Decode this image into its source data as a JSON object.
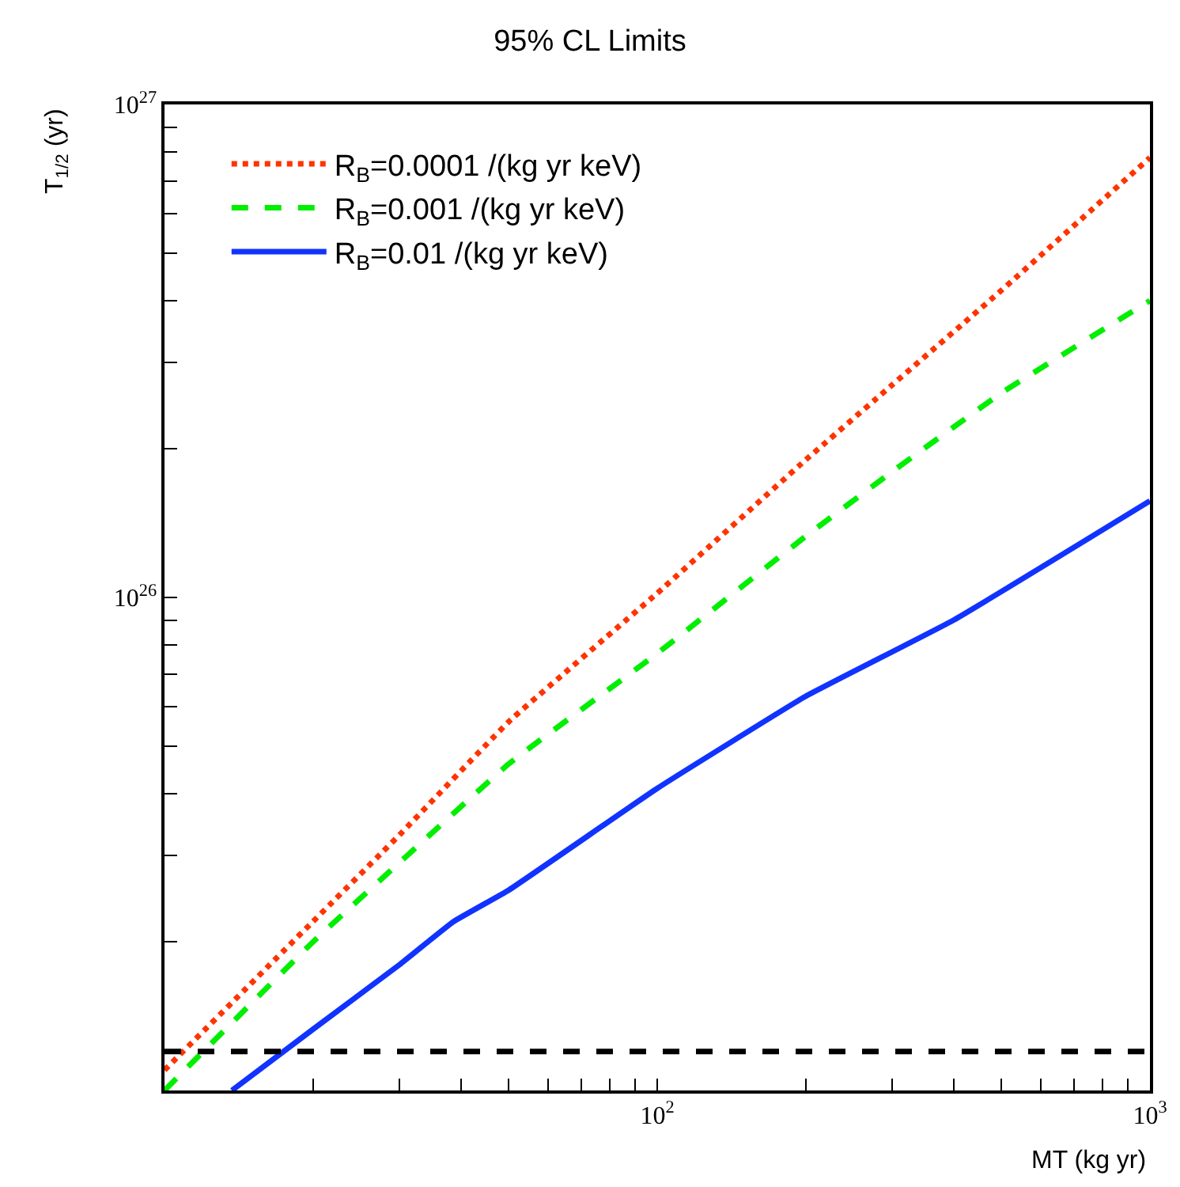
{
  "chart_data": {
    "type": "line",
    "title": "95% CL Limits",
    "xlabel": "MT (kg yr)",
    "ylabel": "T$_{1/2}$ (yr)",
    "log": "xy",
    "legend": "top left",
    "marker": "none",
    "xlim": [
      10,
      1000
    ],
    "ylim": [
      1e+25,
      1e+27
    ],
    "xticks": [
      {
        "value": 20,
        "label": null
      },
      {
        "value": 30,
        "label": null
      },
      {
        "value": 40,
        "label": null
      },
      {
        "value": 50,
        "label": null
      },
      {
        "value": 60,
        "label": null
      },
      {
        "value": 70,
        "label": null
      },
      {
        "value": 80,
        "label": null
      },
      {
        "value": 90,
        "label": null
      },
      {
        "value": 100,
        "label": "10$^{2}$"
      },
      {
        "value": 200,
        "label": null
      },
      {
        "value": 300,
        "label": null
      },
      {
        "value": 400,
        "label": null
      },
      {
        "value": 500,
        "label": null
      },
      {
        "value": 600,
        "label": null
      },
      {
        "value": 700,
        "label": null
      },
      {
        "value": 800,
        "label": null
      },
      {
        "value": 900,
        "label": null
      },
      {
        "value": 1000,
        "label": "10$^{3}$"
      }
    ],
    "yticks": [
      {
        "value": 2e+25,
        "label": null
      },
      {
        "value": 3e+25,
        "label": null
      },
      {
        "value": 4e+25,
        "label": null
      },
      {
        "value": 5e+25,
        "label": null
      },
      {
        "value": 6e+25,
        "label": null
      },
      {
        "value": 7e+25,
        "label": null
      },
      {
        "value": 8e+25,
        "label": null
      },
      {
        "value": 9e+25,
        "label": null
      },
      {
        "value": 1e+26,
        "label": "10$^{26}$"
      },
      {
        "value": 2e+26,
        "label": null
      },
      {
        "value": 3e+26,
        "label": null
      },
      {
        "value": 4e+26,
        "label": null
      },
      {
        "value": 5e+26,
        "label": null
      },
      {
        "value": 6e+26,
        "label": null
      },
      {
        "value": 7e+26,
        "label": null
      },
      {
        "value": 8e+26,
        "label": null
      },
      {
        "value": 9e+26,
        "label": null
      },
      {
        "value": 1e+27,
        "label": "10$^{27}$"
      }
    ],
    "series": [
      {
        "name": "R$_{B}$=0.0001 /(kg yr keV)",
        "color": "#ff3300",
        "line_style": "dotted",
        "x": [
          10,
          20,
          30,
          50,
          100,
          200,
          300,
          500,
          1000
        ],
        "values": [
          1.1e+25,
          2.2e+25,
          3.3e+25,
          5.6e+25,
          1.02e+26,
          1.9e+26,
          2.7e+26,
          4.2e+26,
          7.8e+26
        ]
      },
      {
        "name": "R$_{B}$=0.001 /(kg yr keV)",
        "color": "#00ee00",
        "line_style": "dashed",
        "x": [
          10,
          20,
          30,
          50,
          100,
          200,
          300,
          500,
          1000
        ],
        "values": [
          1e+25,
          2e+25,
          2.9e+25,
          4.6e+25,
          7.7e+25,
          1.33e+26,
          1.8e+26,
          2.6e+26,
          4e+26
        ]
      },
      {
        "name": "R$_{B}$=0.01 /(kg yr keV)",
        "color": "#1133ff",
        "line_style": "solid",
        "x": [
          13.7,
          20,
          30,
          38.6,
          50,
          100,
          200,
          400,
          1000
        ],
        "values": [
          1e+25,
          1.33e+25,
          1.8e+25,
          2.2e+25,
          2.55e+25,
          4.1e+25,
          6.3e+25,
          9e+25,
          1.57e+26
        ]
      }
    ],
    "ref_lines": [
      {
        "axis": "y",
        "value": 1.2e+25,
        "color": "#000000",
        "line_style": "dashed"
      }
    ]
  }
}
